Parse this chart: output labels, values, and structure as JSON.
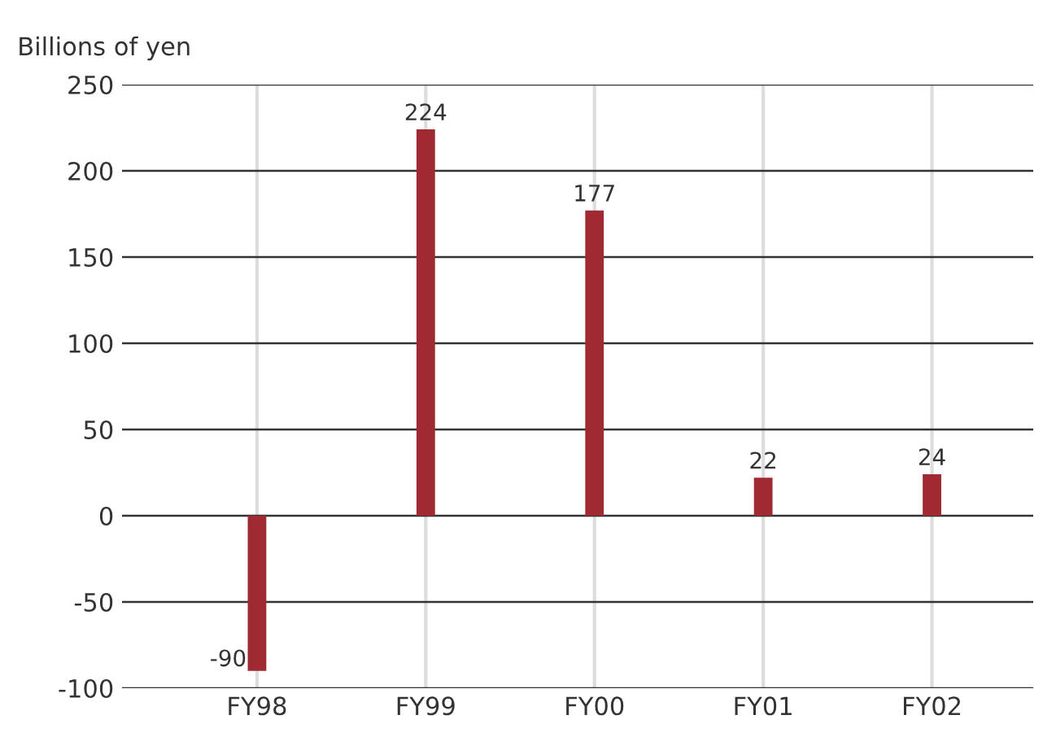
{
  "chart_data": {
    "type": "bar",
    "ylabel": "Billions of yen",
    "categories": [
      "FY98",
      "FY99",
      "FY00",
      "FY01",
      "FY02"
    ],
    "values": [
      -90,
      224,
      177,
      22,
      24
    ],
    "color": "#a02a32",
    "ylim": [
      -100,
      250
    ],
    "yticks": [
      -100,
      -50,
      0,
      50,
      100,
      150,
      200,
      250
    ],
    "data_labels": true,
    "grid": true
  }
}
